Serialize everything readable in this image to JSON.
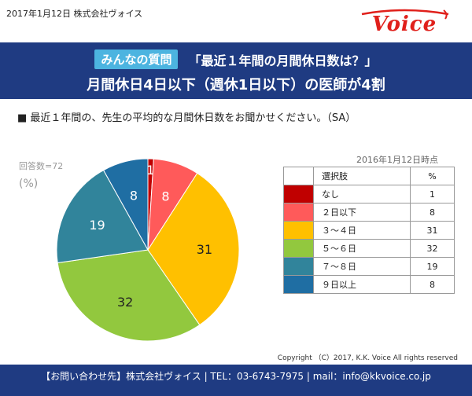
{
  "header": {
    "date_company": "2017年1月12日  株式会社ヴォイス",
    "logo_text": "Voice"
  },
  "banner": {
    "badge": "みんなの質問",
    "question": "「最近１年間の月間休日数は？」",
    "headline": "月間休日4日以下（週休1日以下）の医師が4割"
  },
  "survey_question": "■ 最近１年間の、先生の平均的な月間休日数をお聞かせください。（SA）",
  "respondents": "回答数=72",
  "unit": "(%)",
  "as_of": "2016年1月12日時点",
  "legend_table": {
    "header_label": "選択肢",
    "header_value": "%"
  },
  "chart_data": {
    "type": "pie",
    "categories": [
      "なし",
      "２日以下",
      "３～４日",
      "５～６日",
      "７～８日",
      "９日以上"
    ],
    "values": [
      1,
      8,
      31,
      32,
      19,
      8
    ],
    "colors": [
      "#c00000",
      "#ff5a5a",
      "#ffc000",
      "#92c83e",
      "#31849b",
      "#1f6ea3"
    ],
    "label_colors": [
      "#ffffff",
      "#ffffff",
      "#222222",
      "#222222",
      "#ffffff",
      "#ffffff"
    ]
  },
  "copyright": "Copyright （C）2017, K.K. Voice All rights reserved",
  "footer": "【お問い合わせ先】株式会社ヴォイス | TEL：03-6743-7975 | mail：info@kkvoice.co.jp"
}
